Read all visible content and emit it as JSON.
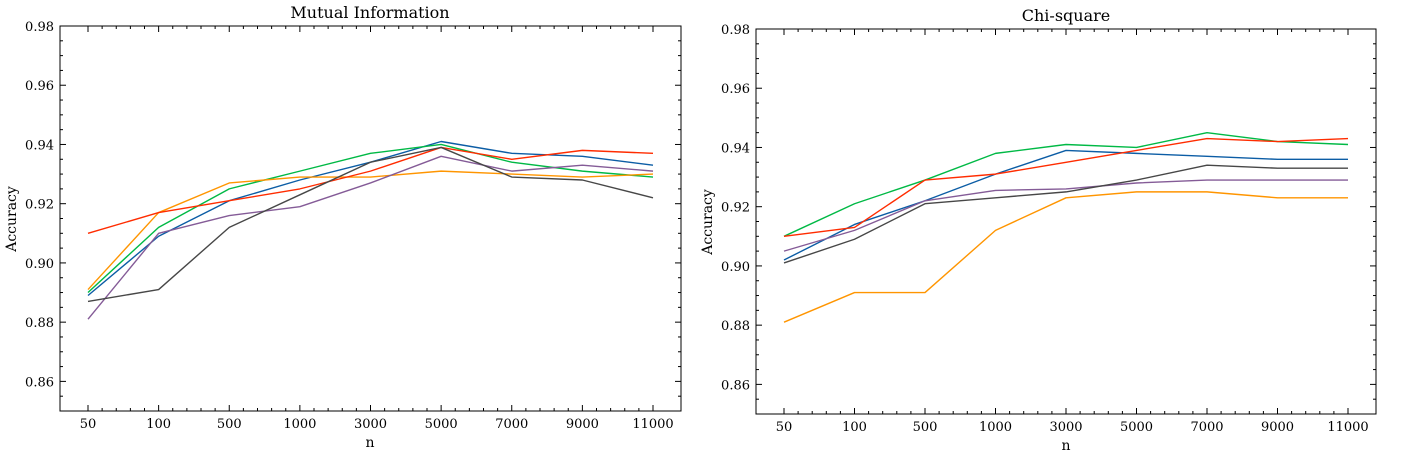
{
  "chart_data": [
    {
      "type": "line",
      "title": "Mutual Information",
      "xlabel": "n",
      "ylabel": "Accuracy",
      "categories": [
        "50",
        "100",
        "500",
        "1000",
        "3000",
        "5000",
        "7000",
        "9000",
        "11000"
      ],
      "ylim": [
        0.85,
        0.98
      ],
      "yticks": [
        "0.86",
        "0.88",
        "0.90",
        "0.92",
        "0.94",
        "0.96",
        "0.98"
      ],
      "series": [
        {
          "name": "blue",
          "color": "#0c5da5",
          "values": [
            0.889,
            0.909,
            0.921,
            0.928,
            0.934,
            0.941,
            0.937,
            0.936,
            0.933
          ]
        },
        {
          "name": "green",
          "color": "#00b945",
          "values": [
            0.89,
            0.912,
            0.925,
            0.931,
            0.937,
            0.94,
            0.934,
            0.931,
            0.929
          ]
        },
        {
          "name": "orange",
          "color": "#ff9500",
          "values": [
            0.891,
            0.917,
            0.927,
            0.929,
            0.929,
            0.931,
            0.93,
            0.929,
            0.93
          ]
        },
        {
          "name": "red",
          "color": "#ff2c00",
          "values": [
            0.91,
            0.917,
            0.921,
            0.925,
            0.931,
            0.939,
            0.935,
            0.938,
            0.937
          ]
        },
        {
          "name": "purple",
          "color": "#845b97",
          "values": [
            0.881,
            0.91,
            0.916,
            0.919,
            0.927,
            0.936,
            0.931,
            0.933,
            0.931
          ]
        },
        {
          "name": "dark-gray",
          "color": "#474747",
          "values": [
            0.887,
            0.891,
            0.912,
            0.923,
            0.934,
            0.939,
            0.929,
            0.928,
            0.922
          ]
        }
      ]
    },
    {
      "type": "line",
      "title": "Chi-square",
      "xlabel": "n",
      "ylabel": "Accuracy",
      "categories": [
        "50",
        "100",
        "500",
        "1000",
        "3000",
        "5000",
        "7000",
        "9000",
        "11000"
      ],
      "ylim": [
        0.85,
        0.98
      ],
      "yticks": [
        "0.86",
        "0.88",
        "0.90",
        "0.92",
        "0.94",
        "0.96",
        "0.98"
      ],
      "series": [
        {
          "name": "blue",
          "color": "#0c5da5",
          "values": [
            0.902,
            0.914,
            0.922,
            0.931,
            0.939,
            0.938,
            0.937,
            0.936,
            0.936
          ]
        },
        {
          "name": "green",
          "color": "#00b945",
          "values": [
            0.91,
            0.921,
            0.929,
            0.938,
            0.941,
            0.94,
            0.945,
            0.942,
            0.941
          ]
        },
        {
          "name": "orange",
          "color": "#ff9500",
          "values": [
            0.881,
            0.891,
            0.891,
            0.912,
            0.923,
            0.925,
            0.925,
            0.923,
            0.923
          ]
        },
        {
          "name": "red",
          "color": "#ff2c00",
          "values": [
            0.91,
            0.913,
            0.929,
            0.931,
            0.935,
            0.939,
            0.943,
            0.942,
            0.943
          ]
        },
        {
          "name": "purple",
          "color": "#845b97",
          "values": [
            0.905,
            0.912,
            0.922,
            0.9255,
            0.926,
            0.928,
            0.929,
            0.929,
            0.929
          ]
        },
        {
          "name": "dark-gray",
          "color": "#474747",
          "values": [
            0.901,
            0.909,
            0.921,
            0.923,
            0.925,
            0.929,
            0.934,
            0.933,
            0.933
          ]
        }
      ]
    }
  ]
}
